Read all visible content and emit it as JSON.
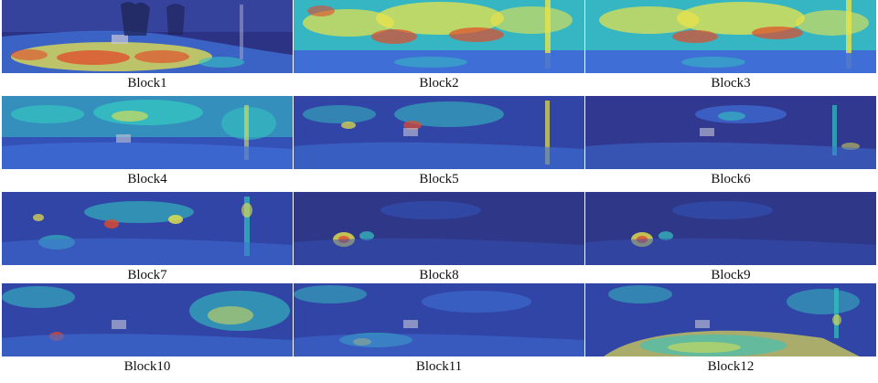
{
  "panels": [
    {
      "label": "Block1",
      "intensity": "low-top, high-bottom-road"
    },
    {
      "label": "Block2",
      "intensity": "high-dense"
    },
    {
      "label": "Block3",
      "intensity": "high-dense"
    },
    {
      "label": "Block4",
      "intensity": "medium"
    },
    {
      "label": "Block5",
      "intensity": "medium-sparse"
    },
    {
      "label": "Block6",
      "intensity": "low"
    },
    {
      "label": "Block7",
      "intensity": "medium-spots"
    },
    {
      "label": "Block8",
      "intensity": "low-spots"
    },
    {
      "label": "Block9",
      "intensity": "low-spots"
    },
    {
      "label": "Block10",
      "intensity": "low-medium"
    },
    {
      "label": "Block11",
      "intensity": "low-medium"
    },
    {
      "label": "Block12",
      "intensity": "medium-bottom-road"
    }
  ],
  "colors": {
    "cold": "#2b2f8f",
    "cool": "#3f6fd6",
    "mid": "#35c3c0",
    "warm": "#e9e34a",
    "hot": "#e24a2a"
  }
}
